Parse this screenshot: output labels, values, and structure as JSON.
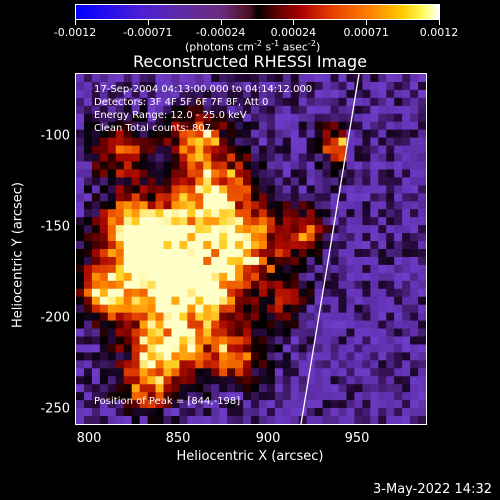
{
  "colorbar": {
    "tick_labels": [
      "-0.0012",
      "-0.00071",
      "-0.00024",
      "0.00024",
      "0.00071",
      "0.0012"
    ],
    "units": [
      "(photons cm",
      "-2",
      " s",
      "-1",
      " asec",
      "-2",
      ")"
    ]
  },
  "title": "Reconstructed RHESSI Image",
  "info_lines": [
    "17-Sep-2004 04:13:00.000 to 04:14:12.000",
    "Detectors: 3F 4F 5F 6F 7F 8F, Att 0",
    "Energy Range: 12.0 - 25.0 keV",
    "Clean    Total counts: 807."
  ],
  "peak_label": "Position of Peak = [844,-198]",
  "axes": {
    "x_label": "Heliocentric X (arcsec)",
    "y_label": "Heliocentric Y (arcsec)",
    "x_ticks": [
      "800",
      "850",
      "900",
      "950"
    ],
    "y_ticks": [
      "-100",
      "-150",
      "-200",
      "-250"
    ]
  },
  "datestamp": "3-May-2022 14:32"
}
